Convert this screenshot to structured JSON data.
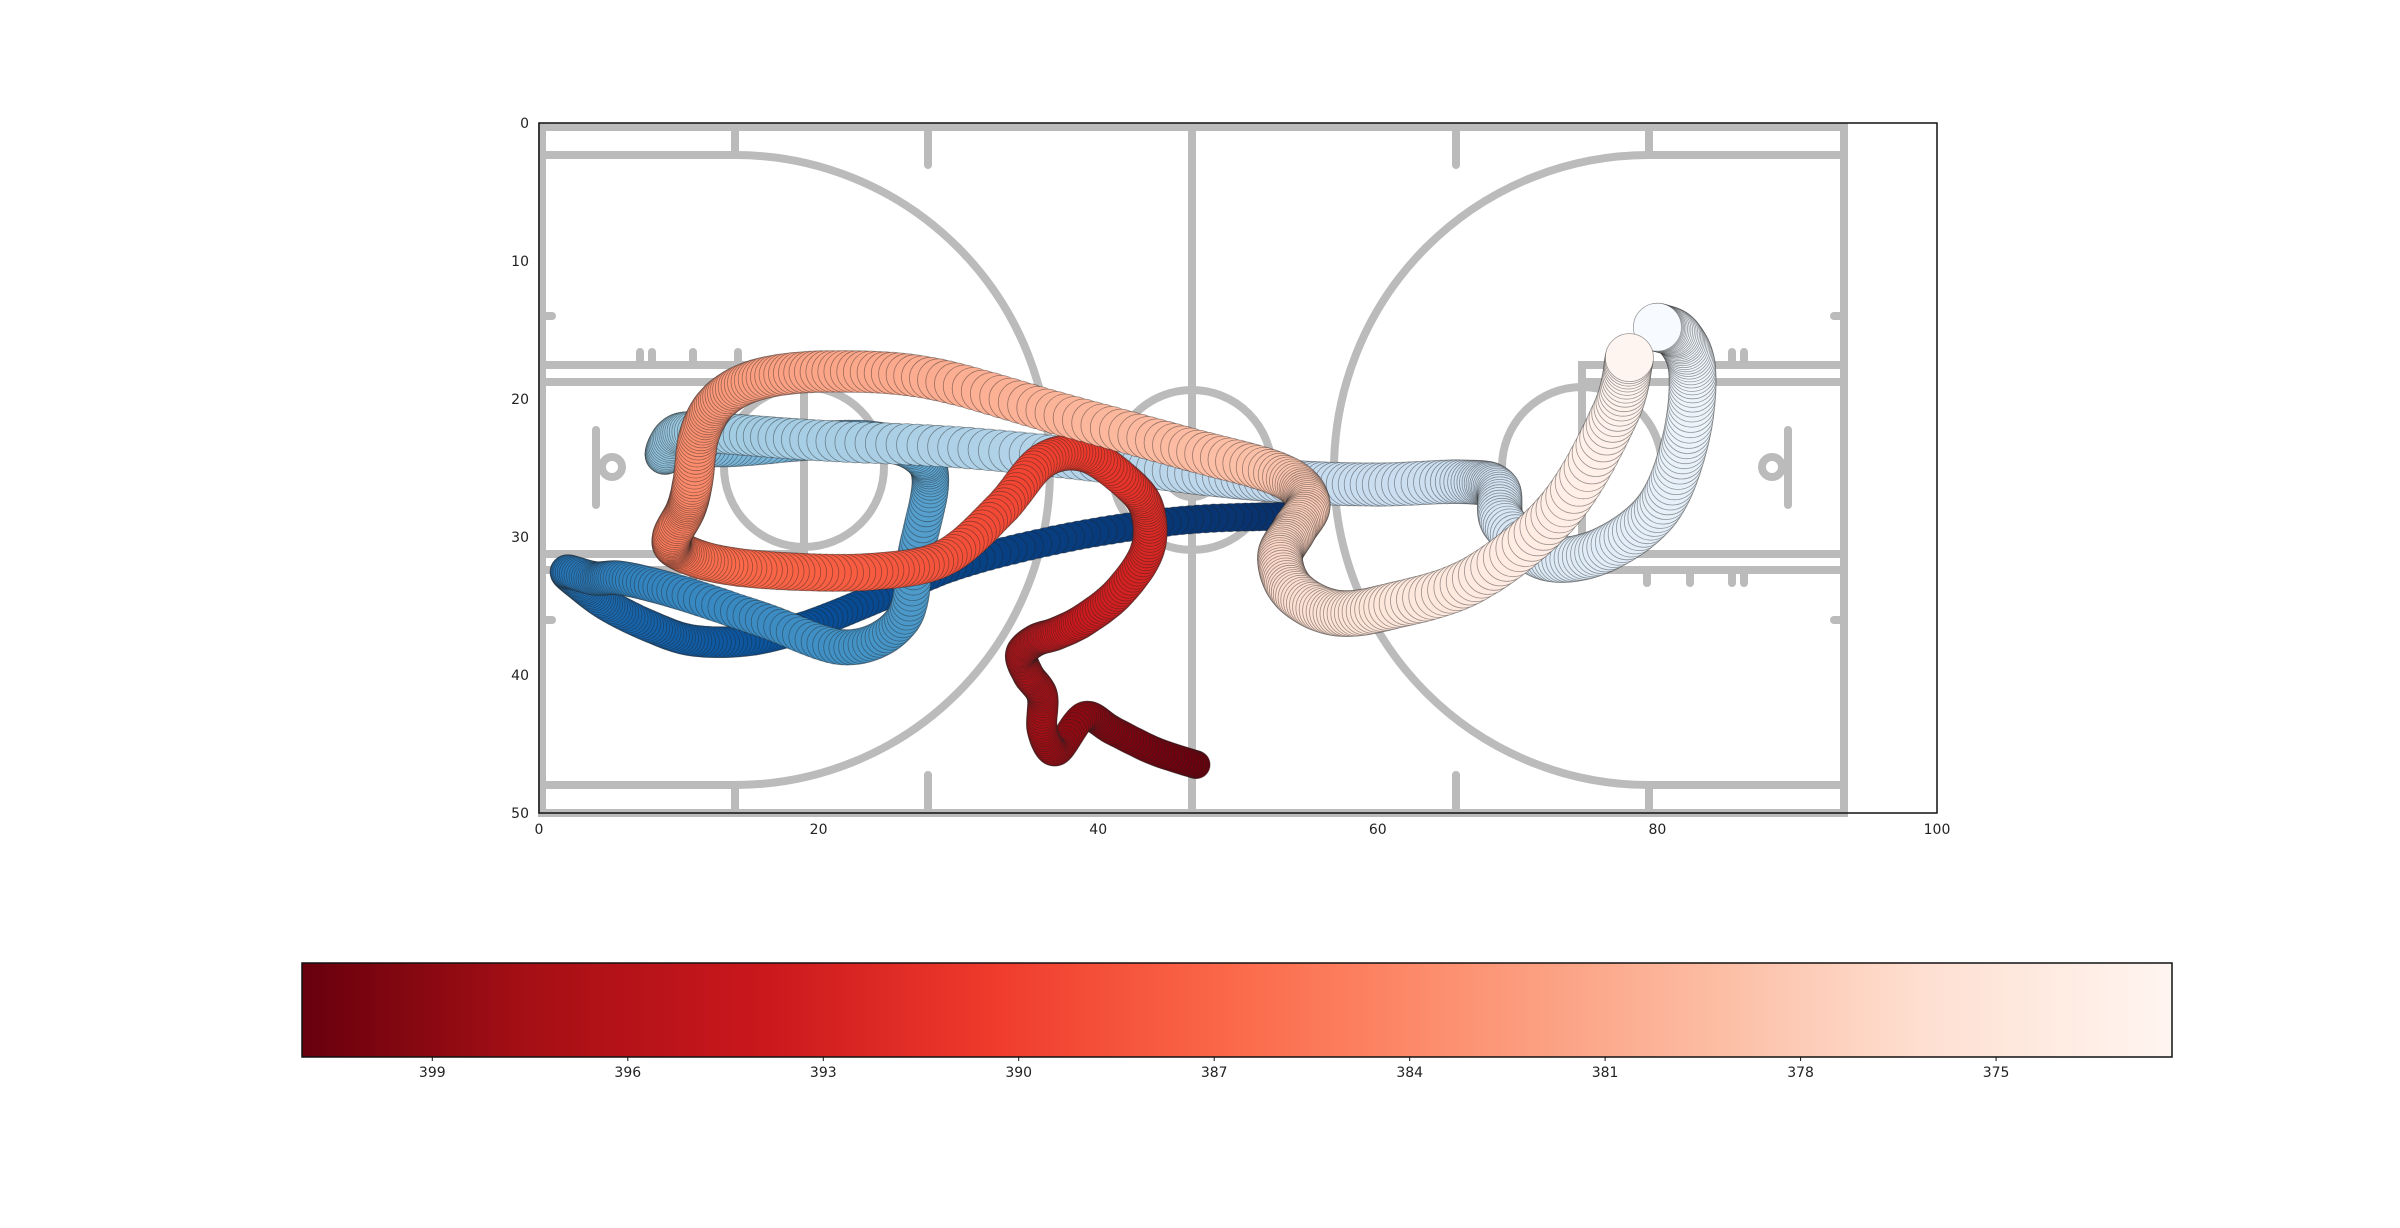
{
  "chart_data": [
    {
      "type": "scatter",
      "title": "",
      "xlabel": "",
      "ylabel": "",
      "xlim": [
        0,
        100
      ],
      "ylim": [
        50,
        0
      ],
      "x_ticks": [
        "0",
        "20",
        "40",
        "60",
        "80",
        "100"
      ],
      "y_ticks": [
        "0",
        "10",
        "20",
        "30",
        "40",
        "50"
      ],
      "background": "basketball half-court diagram (full court lines)",
      "grid": false,
      "series": [
        {
          "colormap": "Blues",
          "color_start": "#08306b",
          "color_end": "#f7fbff",
          "x": [
            53,
            46,
            38,
            30,
            24,
            19,
            15,
            11,
            8,
            5,
            3,
            2,
            4,
            6,
            10,
            16,
            22,
            26,
            27,
            28,
            27,
            24,
            20,
            14,
            10,
            9,
            10,
            13,
            20,
            30,
            40,
            48,
            54,
            60,
            66,
            68.5,
            69,
            72,
            76,
            80,
            82,
            82.5,
            81.5,
            80
          ],
          "y": [
            28.5,
            28.8,
            30,
            32,
            34.5,
            36.5,
            37.5,
            37.5,
            36.5,
            35,
            33.5,
            32.5,
            33,
            33,
            34,
            36,
            38,
            36,
            31,
            26,
            24,
            23,
            23,
            23.5,
            23.5,
            24,
            22.5,
            22.5,
            23,
            23.5,
            24.5,
            25.5,
            26,
            26.2,
            26,
            26.5,
            29,
            31.5,
            31,
            28,
            23,
            18,
            15.5,
            14.8
          ]
        },
        {
          "colormap": "Reds",
          "color_start": "#67000d",
          "color_end": "#fff5f0",
          "x": [
            47,
            44,
            41,
            39,
            37,
            36,
            36,
            35,
            34.5,
            35.5,
            37,
            39,
            41.5,
            43.5,
            43.5,
            42,
            39,
            36,
            33,
            29,
            24,
            18,
            13,
            10,
            9.5,
            10.5,
            11,
            11.5,
            13,
            16,
            21,
            28,
            37,
            46,
            53,
            55,
            54,
            53,
            54,
            57,
            61,
            67,
            73,
            77,
            78
          ],
          "y": [
            46.5,
            45.5,
            44,
            43,
            45.5,
            44,
            41.5,
            40,
            38.5,
            37.5,
            37,
            36,
            34,
            31,
            28,
            26,
            24,
            24.5,
            28,
            31.5,
            32.5,
            32.5,
            32,
            31,
            30,
            28,
            26,
            22.5,
            20,
            18.5,
            18,
            18.5,
            21,
            23.5,
            25.5,
            27.5,
            29.5,
            31.5,
            34,
            35.5,
            35,
            33,
            28,
            21,
            17
          ]
        }
      ]
    },
    {
      "type": "colorbar",
      "colormap": "Reds_r",
      "ticks": [
        "399",
        "396",
        "393",
        "390",
        "387",
        "384",
        "381",
        "378",
        "375"
      ],
      "range": [
        401,
        372.3
      ]
    }
  ]
}
